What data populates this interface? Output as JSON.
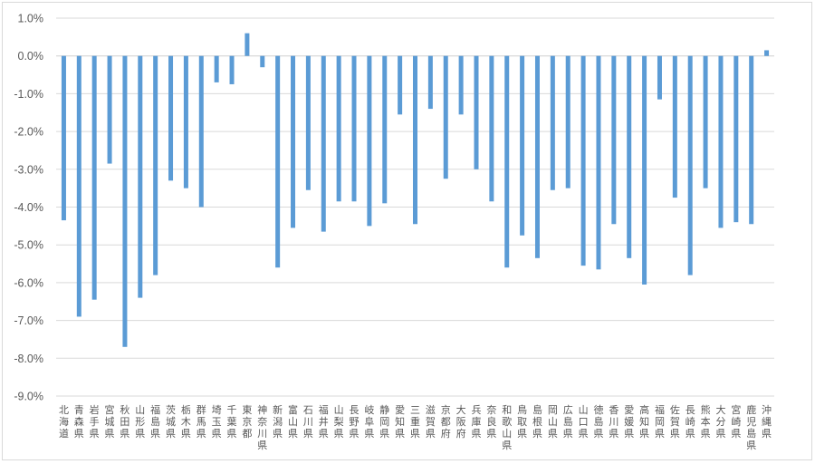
{
  "chart_data": {
    "type": "bar",
    "title": "",
    "xlabel": "",
    "ylabel": "",
    "ylim": [
      -9.0,
      1.0
    ],
    "y_tick_step": 1.0,
    "y_tick_labels": [
      "1.0%",
      "0.0%",
      "-1.0%",
      "-2.0%",
      "-3.0%",
      "-4.0%",
      "-5.0%",
      "-6.0%",
      "-7.0%",
      "-8.0%",
      "-9.0%"
    ],
    "grid": true,
    "legend": "none",
    "bar_color": "#5b9bd5",
    "categories": [
      "北海道",
      "青森県",
      "岩手県",
      "宮城県",
      "秋田県",
      "山形県",
      "福島県",
      "茨城県",
      "栃木県",
      "群馬県",
      "埼玉県",
      "千葉県",
      "東京都",
      "神奈川県",
      "新潟県",
      "富山県",
      "石川県",
      "福井県",
      "山梨県",
      "長野県",
      "岐阜県",
      "静岡県",
      "愛知県",
      "三重県",
      "滋賀県",
      "京都府",
      "大阪府",
      "兵庫県",
      "奈良県",
      "和歌山県",
      "鳥取県",
      "島根県",
      "岡山県",
      "広島県",
      "山口県",
      "徳島県",
      "香川県",
      "愛媛県",
      "高知県",
      "福岡県",
      "佐賀県",
      "長崎県",
      "熊本県",
      "大分県",
      "宮崎県",
      "鹿児島県",
      "沖縄県"
    ],
    "values": [
      -4.35,
      -6.9,
      -6.45,
      -2.85,
      -7.7,
      -6.4,
      -5.8,
      -3.3,
      -3.5,
      -4.0,
      -0.7,
      -0.75,
      0.6,
      -0.3,
      -5.6,
      -4.55,
      -3.55,
      -4.65,
      -3.85,
      -3.85,
      -4.5,
      -3.9,
      -1.55,
      -4.45,
      -1.4,
      -3.25,
      -1.55,
      -3.0,
      -3.85,
      -5.6,
      -4.75,
      -5.35,
      -3.55,
      -3.5,
      -5.55,
      -5.65,
      -4.45,
      -5.35,
      -6.05,
      -1.15,
      -3.75,
      -5.8,
      -3.5,
      -4.55,
      -4.4,
      -4.45,
      0.15
    ]
  }
}
